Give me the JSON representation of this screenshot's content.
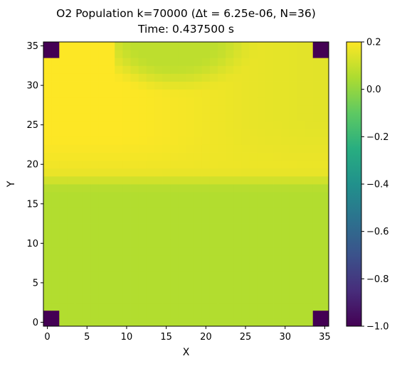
{
  "chart_data": {
    "type": "heatmap",
    "title_line1": "O2 Population k=70000 (Δt = 6.25e-06, N=36)",
    "title_line2": "Time: 0.437500 s",
    "xlabel": "X",
    "ylabel": "Y",
    "grid_size": 36,
    "xlim": [
      -0.5,
      35.5
    ],
    "ylim": [
      -0.5,
      35.5
    ],
    "x_ticks": [
      0,
      5,
      10,
      15,
      20,
      25,
      30,
      35
    ],
    "y_ticks": [
      0,
      5,
      10,
      15,
      20,
      25,
      30,
      35
    ],
    "colormap": "viridis",
    "colorbar": {
      "vmin": -1.0,
      "vmax": 0.2,
      "ticks": [
        0.2,
        0.0,
        -0.2,
        -0.4,
        -0.6,
        -0.8,
        -1.0
      ],
      "tick_labels": [
        "0.2",
        "0.0",
        "−0.2",
        "−0.4",
        "−0.6",
        "−0.8",
        "−1.0"
      ]
    },
    "value_regions": {
      "lower_region_value": 0.06,
      "lower_region_y_max": 16,
      "upper_region_value": 0.17,
      "upper_left_max_value": 0.2,
      "top_middle_green_value": 0.08,
      "top_middle_green_x_range": [
        10,
        22
      ],
      "top_middle_green_y_range": [
        29,
        35
      ],
      "corner_value": -1.0,
      "corner_cells": [
        [
          0,
          0
        ],
        [
          1,
          0
        ],
        [
          0,
          1
        ],
        [
          1,
          1
        ],
        [
          34,
          0
        ],
        [
          35,
          0
        ],
        [
          34,
          1
        ],
        [
          35,
          1
        ],
        [
          0,
          34
        ],
        [
          1,
          34
        ],
        [
          0,
          35
        ],
        [
          1,
          35
        ],
        [
          34,
          34
        ],
        [
          35,
          34
        ],
        [
          34,
          35
        ],
        [
          35,
          35
        ]
      ]
    }
  }
}
